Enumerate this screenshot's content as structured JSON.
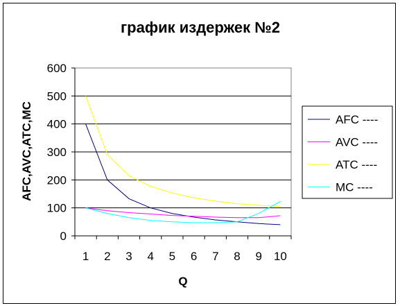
{
  "chart_data": {
    "type": "line",
    "title": "график издержек №2",
    "xlabel": "Q",
    "ylabel": "AFC,AVC,ATC,MC",
    "x": [
      1,
      2,
      3,
      4,
      5,
      6,
      7,
      8,
      9,
      10
    ],
    "xtick_labels": [
      "1",
      "2",
      "3",
      "4",
      "5",
      "6",
      "7",
      "8",
      "9",
      "10"
    ],
    "ylim": [
      0,
      600
    ],
    "yticks": [
      0,
      100,
      200,
      300,
      400,
      500,
      600
    ],
    "ytick_labels": [
      "0",
      "100",
      "200",
      "300",
      "400",
      "500",
      "600"
    ],
    "grid": "horizontal",
    "legend_position": "right",
    "series": [
      {
        "name": "AFC ----",
        "color": "#000080",
        "values": [
          400,
          200,
          133,
          100,
          80,
          67,
          57,
          50,
          44,
          40
        ]
      },
      {
        "name": "AVC ----",
        "color": "#ff00ff",
        "values": [
          100,
          90,
          83,
          78,
          73,
          70,
          67,
          65,
          65,
          72
        ]
      },
      {
        "name": "ATC ----",
        "color": "#ffff00",
        "values": [
          500,
          290,
          215,
          177,
          153,
          136,
          124,
          115,
          109,
          105
        ]
      },
      {
        "name": "MC ----",
        "color": "#00ffff",
        "values": [
          100,
          80,
          65,
          55,
          50,
          47,
          47,
          50,
          80,
          123
        ]
      }
    ]
  }
}
